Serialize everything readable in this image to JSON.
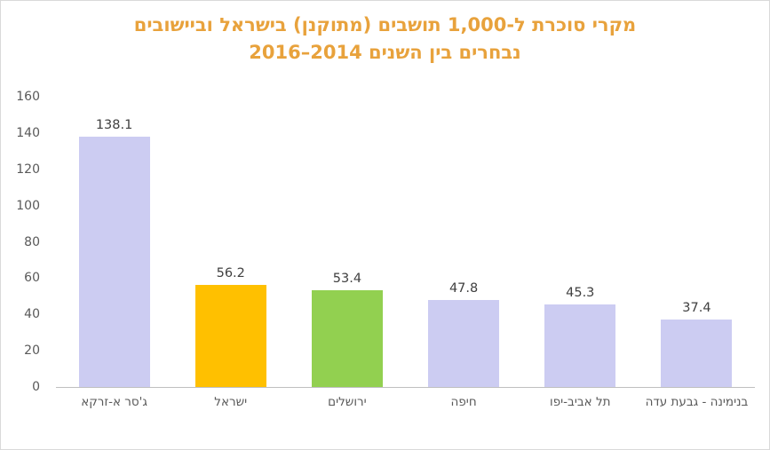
{
  "chart_data": {
    "type": "bar",
    "title_lines": [
      "מקרי סוכרת ל-1,000 תושבים (מתוקנן) בישראל וביישובים",
      "נבחרים בין השנים 2014–2016"
    ],
    "categories": [
      "ג'סר א-זרקא",
      "ישראל",
      "ירושלים",
      "חיפה",
      "תל אביב-יפו",
      "בנימינה - גבעת עדה"
    ],
    "values": [
      138.1,
      56.2,
      53.4,
      47.8,
      45.3,
      37.4
    ],
    "value_labels": [
      "138.1",
      "56.2",
      "53.4",
      "47.8",
      "45.3",
      "37.4"
    ],
    "bar_colors": [
      "#ccccf2",
      "#ffc000",
      "#92d050",
      "#ccccf2",
      "#ccccf2",
      "#ccccf2"
    ],
    "ylim": [
      0,
      160
    ],
    "yticks": [
      0,
      20,
      40,
      60,
      80,
      100,
      120,
      140,
      160
    ],
    "grid": false,
    "legend": false,
    "title_color": "#e8a23c",
    "axis_line_color": "#bfbfbf",
    "tick_label_color": "#595959",
    "value_label_color": "#404040"
  }
}
